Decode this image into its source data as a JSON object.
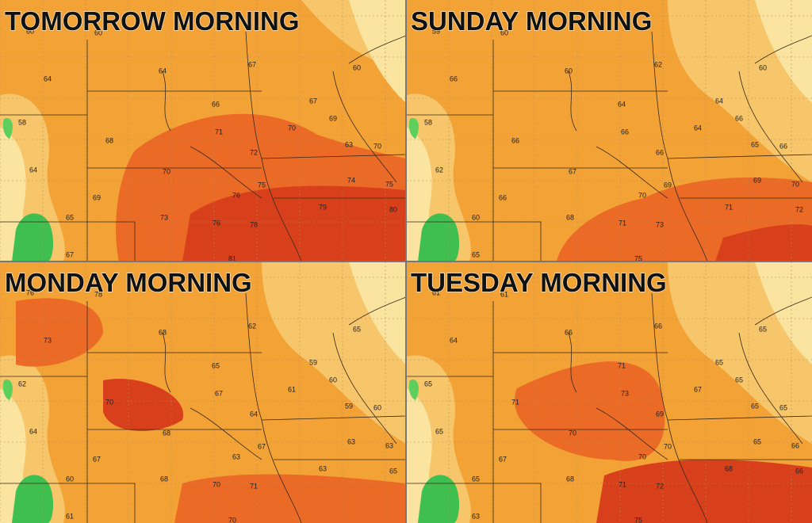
{
  "panels": [
    {
      "title": "TOMORROW MORNING",
      "labels": [
        60,
        60,
        64,
        64,
        67,
        60,
        58,
        66,
        67,
        69,
        70,
        68,
        71,
        63,
        70,
        72,
        64,
        70,
        74,
        75,
        69,
        76,
        75,
        79,
        80,
        65,
        73,
        76,
        78,
        67,
        81
      ]
    },
    {
      "title": "SUNDAY MORNING",
      "labels": [
        59,
        60,
        66,
        60,
        62,
        60,
        58,
        64,
        64,
        66,
        64,
        66,
        66,
        65,
        66,
        66,
        62,
        67,
        69,
        70,
        66,
        70,
        69,
        71,
        72,
        60,
        68,
        71,
        73,
        65,
        75
      ]
    },
    {
      "title": "MONDAY MORNING",
      "labels": [
        76,
        78,
        73,
        68,
        62,
        65,
        62,
        65,
        59,
        60,
        61,
        70,
        67,
        59,
        60,
        64,
        64,
        68,
        63,
        63,
        67,
        63,
        67,
        63,
        65,
        60,
        68,
        70,
        71,
        61,
        70
      ]
    },
    {
      "title": "TUESDAY MORNING",
      "labels": [
        61,
        61,
        64,
        66,
        66,
        65,
        65,
        71,
        65,
        65,
        67,
        71,
        73,
        65,
        65,
        69,
        65,
        70,
        65,
        66,
        67,
        70,
        70,
        68,
        66,
        65,
        68,
        71,
        72,
        63,
        75
      ]
    }
  ]
}
